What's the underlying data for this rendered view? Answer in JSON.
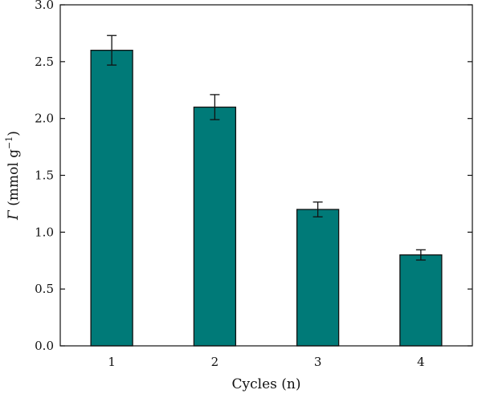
{
  "chart_data": {
    "type": "bar",
    "categories": [
      "1",
      "2",
      "3",
      "4"
    ],
    "values": [
      2.6,
      2.1,
      1.2,
      0.8
    ],
    "errors": [
      0.13,
      0.11,
      0.065,
      0.045
    ],
    "xlabel": "Cycles (n)",
    "ylabel": {
      "symbol": "Γ",
      "text": " (mmol g",
      "sup": "−1",
      "close": ")"
    },
    "ylim": [
      0,
      3.0
    ],
    "yticks": [
      "0.0",
      "0.5",
      "1.0",
      "1.5",
      "2.0",
      "2.5",
      "3.0"
    ],
    "grid": false,
    "bar_color": "#007a78",
    "edge_color": "#111111"
  }
}
